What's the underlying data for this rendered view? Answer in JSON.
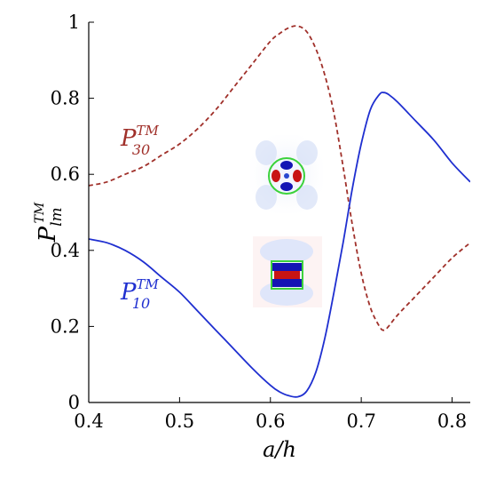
{
  "chart_data": {
    "type": "line",
    "xlabel": "a/h",
    "ylabel": {
      "base": "P",
      "sub": "lm",
      "sup": "TM"
    },
    "xlim": [
      0.4,
      0.82
    ],
    "ylim": [
      0,
      1
    ],
    "xticks": [
      "0.4",
      "0.5",
      "0.6",
      "0.7",
      "0.8"
    ],
    "yticks": [
      "0",
      "0.2",
      "0.4",
      "0.6",
      "0.8",
      "1"
    ],
    "grid": false,
    "series": [
      {
        "name": "P_30^TM",
        "label": {
          "base": "P",
          "sub": "30",
          "sup": "TM"
        },
        "style": "dashed",
        "color": "#a0302a",
        "x": [
          0.4,
          0.42,
          0.44,
          0.46,
          0.48,
          0.5,
          0.52,
          0.54,
          0.56,
          0.58,
          0.6,
          0.61,
          0.62,
          0.63,
          0.64,
          0.65,
          0.66,
          0.67,
          0.68,
          0.69,
          0.7,
          0.71,
          0.72,
          0.725,
          0.73,
          0.74,
          0.76,
          0.78,
          0.8,
          0.82
        ],
        "y": [
          0.57,
          0.58,
          0.6,
          0.62,
          0.65,
          0.68,
          0.72,
          0.77,
          0.83,
          0.89,
          0.95,
          0.97,
          0.985,
          0.99,
          0.975,
          0.93,
          0.86,
          0.76,
          0.62,
          0.47,
          0.34,
          0.25,
          0.2,
          0.19,
          0.2,
          0.23,
          0.28,
          0.33,
          0.38,
          0.42
        ]
      },
      {
        "name": "P_10^TM",
        "label": {
          "base": "P",
          "sub": "10",
          "sup": "TM"
        },
        "style": "solid",
        "color": "#1f2fd0",
        "x": [
          0.4,
          0.42,
          0.44,
          0.46,
          0.48,
          0.5,
          0.52,
          0.54,
          0.56,
          0.58,
          0.6,
          0.61,
          0.62,
          0.63,
          0.64,
          0.65,
          0.66,
          0.67,
          0.68,
          0.69,
          0.7,
          0.71,
          0.72,
          0.725,
          0.73,
          0.74,
          0.76,
          0.78,
          0.8,
          0.82
        ],
        "y": [
          0.43,
          0.42,
          0.4,
          0.37,
          0.33,
          0.29,
          0.24,
          0.19,
          0.14,
          0.09,
          0.045,
          0.028,
          0.018,
          0.015,
          0.03,
          0.08,
          0.17,
          0.29,
          0.42,
          0.56,
          0.68,
          0.77,
          0.81,
          0.815,
          0.81,
          0.79,
          0.74,
          0.69,
          0.63,
          0.58
        ]
      }
    ],
    "insets": [
      {
        "name": "mode-30-field-map",
        "shape": "circle"
      },
      {
        "name": "mode-10-field-map",
        "shape": "rectangle"
      }
    ],
    "colors": {
      "axis": "#000000",
      "boundary": "#3cd23c",
      "field_positive": "#c81414",
      "field_negative": "#1414b4"
    }
  }
}
